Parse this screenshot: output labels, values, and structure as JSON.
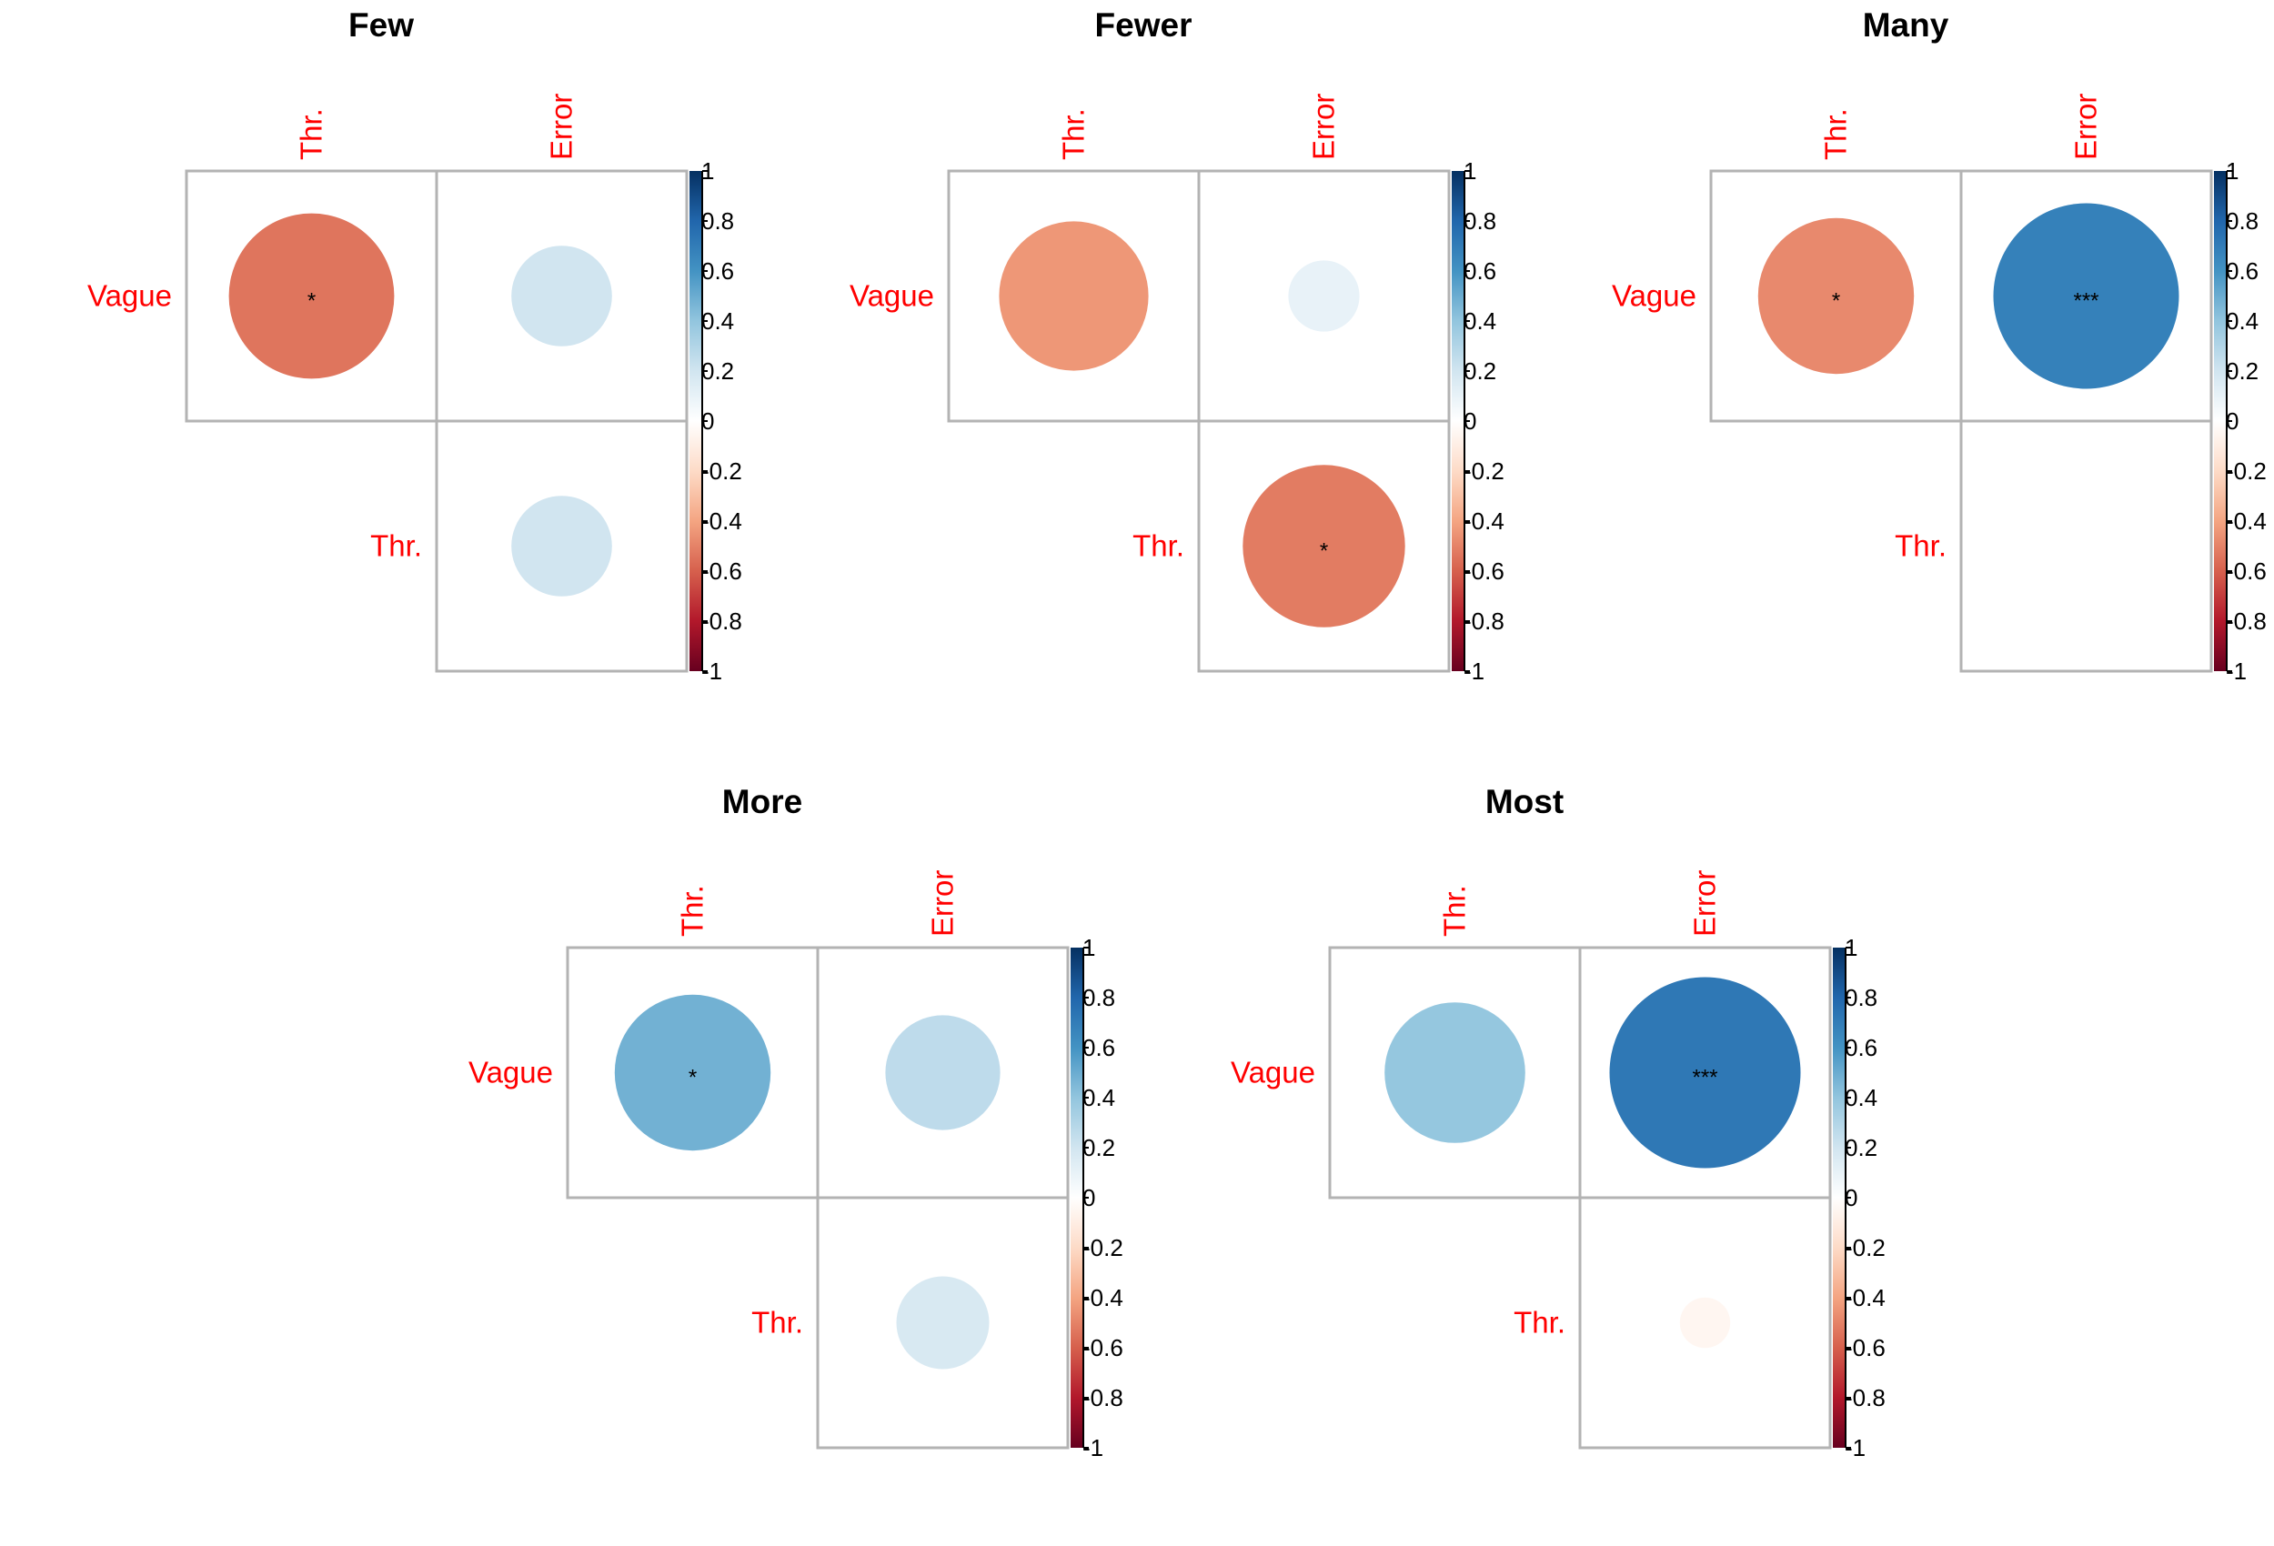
{
  "chart_data": [
    {
      "type": "heatmap",
      "title": "Few",
      "col_labels": [
        "Thr.",
        "Error"
      ],
      "row_labels": [
        "Vague",
        "Thr."
      ],
      "cells": [
        {
          "row": "Vague",
          "col": "Thr.",
          "value": -0.54,
          "sig": "*"
        },
        {
          "row": "Vague",
          "col": "Error",
          "value": 0.2,
          "sig": ""
        },
        {
          "row": "Thr.",
          "col": "Error",
          "value": 0.2,
          "sig": ""
        }
      ],
      "colorbar_ticks": [
        "1",
        "0.8",
        "0.6",
        "0.4",
        "0.2",
        "0",
        "-0.2",
        "-0.4",
        "-0.6",
        "-0.8",
        "-1"
      ],
      "range": [
        -1,
        1
      ]
    },
    {
      "type": "heatmap",
      "title": "Fewer",
      "col_labels": [
        "Thr.",
        "Error"
      ],
      "row_labels": [
        "Vague",
        "Thr."
      ],
      "cells": [
        {
          "row": "Vague",
          "col": "Thr.",
          "value": -0.44,
          "sig": ""
        },
        {
          "row": "Vague",
          "col": "Error",
          "value": 0.1,
          "sig": ""
        },
        {
          "row": "Thr.",
          "col": "Error",
          "value": -0.52,
          "sig": "*"
        }
      ],
      "colorbar_ticks": [
        "1",
        "0.8",
        "0.6",
        "0.4",
        "0.2",
        "0",
        "-0.2",
        "-0.4",
        "-0.6",
        "-0.8",
        "-1"
      ],
      "range": [
        -1,
        1
      ]
    },
    {
      "type": "heatmap",
      "title": "Many",
      "col_labels": [
        "Thr.",
        "Error"
      ],
      "row_labels": [
        "Vague",
        "Thr."
      ],
      "cells": [
        {
          "row": "Vague",
          "col": "Thr.",
          "value": -0.48,
          "sig": "*"
        },
        {
          "row": "Vague",
          "col": "Error",
          "value": 0.68,
          "sig": "***"
        },
        {
          "row": "Thr.",
          "col": "Error",
          "value": 0.0,
          "sig": ""
        }
      ],
      "colorbar_ticks": [
        "1",
        "0.8",
        "0.6",
        "0.4",
        "0.2",
        "0",
        "-0.2",
        "-0.4",
        "-0.6",
        "-0.8",
        "-1"
      ],
      "range": [
        -1,
        1
      ]
    },
    {
      "type": "heatmap",
      "title": "More",
      "col_labels": [
        "Thr.",
        "Error"
      ],
      "row_labels": [
        "Vague",
        "Thr."
      ],
      "cells": [
        {
          "row": "Vague",
          "col": "Thr.",
          "value": 0.48,
          "sig": "*"
        },
        {
          "row": "Vague",
          "col": "Error",
          "value": 0.26,
          "sig": ""
        },
        {
          "row": "Thr.",
          "col": "Error",
          "value": 0.17,
          "sig": ""
        }
      ],
      "colorbar_ticks": [
        "1",
        "0.8",
        "0.6",
        "0.4",
        "0.2",
        "0",
        "-0.2",
        "-0.4",
        "-0.6",
        "-0.8",
        "-1"
      ],
      "range": [
        -1,
        1
      ]
    },
    {
      "type": "heatmap",
      "title": "Most",
      "col_labels": [
        "Thr.",
        "Error"
      ],
      "row_labels": [
        "Vague",
        "Thr."
      ],
      "cells": [
        {
          "row": "Vague",
          "col": "Thr.",
          "value": 0.39,
          "sig": ""
        },
        {
          "row": "Vague",
          "col": "Error",
          "value": 0.72,
          "sig": "***"
        },
        {
          "row": "Thr.",
          "col": "Error",
          "value": -0.05,
          "sig": ""
        }
      ],
      "colorbar_ticks": [
        "1",
        "0.8",
        "0.6",
        "0.4",
        "0.2",
        "0",
        "-0.2",
        "-0.4",
        "-0.6",
        "-0.8",
        "-1"
      ],
      "range": [
        -1,
        1
      ]
    }
  ],
  "colors": {
    "label": "#ff0000",
    "grid": "#b3b3b3",
    "palette": [
      "#67001f",
      "#b2182b",
      "#d6604d",
      "#f4a582",
      "#fddbc7",
      "#ffffff",
      "#d1e5f0",
      "#92c5de",
      "#4393c3",
      "#2166ac",
      "#053061"
    ]
  }
}
